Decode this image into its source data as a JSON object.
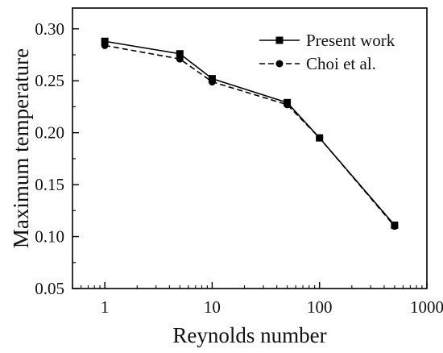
{
  "chart_data": {
    "type": "line",
    "xlabel": "Reynolds number",
    "ylabel": "Maximum temperature",
    "xscale": "log",
    "xlim": [
      0.5,
      1000
    ],
    "ylim": [
      0.05,
      0.32
    ],
    "xticks": [
      {
        "value": 1,
        "label": "1"
      },
      {
        "value": 10,
        "label": "10"
      },
      {
        "value": 100,
        "label": "100"
      },
      {
        "value": 1000,
        "label": "1000"
      }
    ],
    "yticks": [
      {
        "value": 0.05,
        "label": "0.05"
      },
      {
        "value": 0.1,
        "label": "0.10"
      },
      {
        "value": 0.15,
        "label": "0.15"
      },
      {
        "value": 0.2,
        "label": "0.20"
      },
      {
        "value": 0.25,
        "label": "0.25"
      },
      {
        "value": 0.3,
        "label": "0.30"
      }
    ],
    "grid": false,
    "legend_position": "top-right",
    "series": [
      {
        "name": "Present work",
        "marker": "square",
        "line_style": "solid",
        "color": "#000000",
        "x": [
          1,
          5,
          10,
          50,
          100,
          500
        ],
        "y": [
          0.288,
          0.276,
          0.252,
          0.229,
          0.195,
          0.111
        ]
      },
      {
        "name": "Choi et al.",
        "marker": "circle",
        "line_style": "dashed",
        "color": "#000000",
        "x": [
          1,
          5,
          10,
          50,
          100,
          500
        ],
        "y": [
          0.284,
          0.271,
          0.249,
          0.227,
          0.195,
          0.11
        ]
      }
    ]
  }
}
